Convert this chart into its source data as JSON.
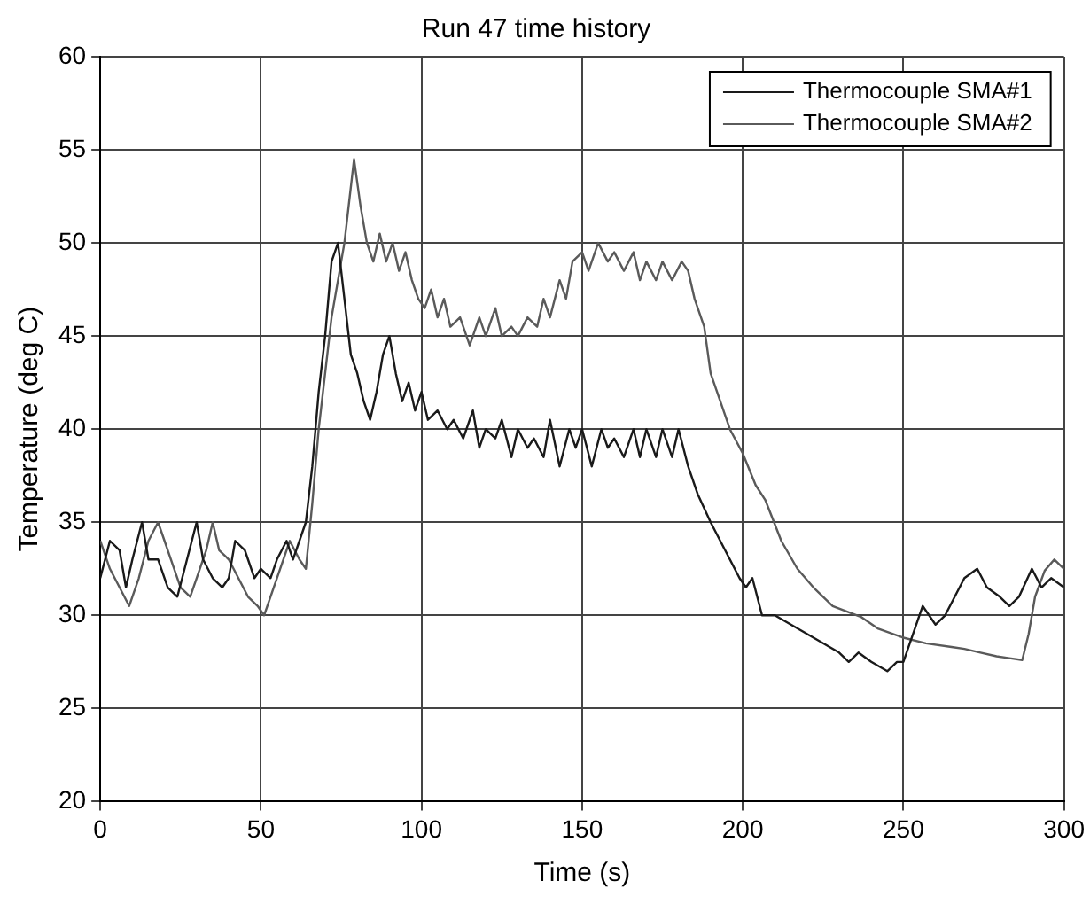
{
  "chart_data": {
    "type": "line",
    "title": "Run 47 time history",
    "xlabel": "Time (s)",
    "ylabel": "Temperature (deg C)",
    "xlim": [
      0,
      300
    ],
    "xticks": [
      0,
      50,
      100,
      150,
      200,
      250,
      300
    ],
    "ylim": [
      20,
      60
    ],
    "yticks": [
      20,
      25,
      30,
      35,
      40,
      45,
      50,
      55,
      60
    ],
    "grid": true,
    "legend": "top right",
    "marker": "none",
    "line_style": "solid",
    "series": [
      {
        "name": "Thermocouple SMA#1",
        "color": "#1a1a1a",
        "x": [
          0,
          3,
          6,
          8,
          10,
          13,
          15,
          18,
          21,
          24,
          27,
          30,
          32,
          35,
          38,
          40,
          42,
          45,
          48,
          50,
          53,
          55,
          58,
          60,
          62,
          64,
          66,
          68,
          70,
          72,
          74,
          76,
          78,
          80,
          82,
          84,
          86,
          88,
          90,
          92,
          94,
          96,
          98,
          100,
          102,
          105,
          108,
          110,
          113,
          116,
          118,
          120,
          123,
          125,
          128,
          130,
          133,
          135,
          138,
          140,
          143,
          146,
          148,
          150,
          153,
          156,
          158,
          160,
          163,
          166,
          168,
          170,
          173,
          175,
          178,
          180,
          183,
          186,
          190,
          193,
          196,
          199,
          201,
          203,
          206,
          210,
          215,
          220,
          225,
          230,
          233,
          236,
          240,
          245,
          248,
          250,
          253,
          256,
          260,
          263,
          266,
          269,
          273,
          276,
          280,
          283,
          286,
          290,
          293,
          296,
          300
        ],
        "values": [
          32,
          34,
          33.5,
          31.5,
          33,
          35,
          33,
          33,
          31.5,
          31,
          33,
          35,
          33,
          32,
          31.5,
          32,
          34,
          33.5,
          32,
          32.5,
          32,
          33,
          34,
          33,
          34,
          35,
          38,
          42,
          45,
          49,
          50,
          47,
          44,
          43,
          41.5,
          40.5,
          42,
          44,
          45,
          43,
          41.5,
          42.5,
          41,
          42,
          40.5,
          41,
          40,
          40.5,
          39.5,
          41,
          39,
          40,
          39.5,
          40.5,
          38.5,
          40,
          39,
          39.5,
          38.5,
          40.5,
          38,
          40,
          39,
          40,
          38,
          40,
          39,
          39.5,
          38.5,
          40,
          38.5,
          40,
          38.5,
          40,
          38.5,
          40,
          38,
          36.5,
          35,
          34,
          33,
          32,
          31.5,
          32,
          30,
          30,
          29.5,
          29,
          28.5,
          28,
          27.5,
          28,
          27.5,
          27,
          27.5,
          27.5,
          29,
          30.5,
          29.5,
          30,
          31,
          32,
          32.5,
          31.5,
          31,
          30.5,
          31,
          32.5,
          31.5,
          32,
          31.5
        ]
      },
      {
        "name": "Thermocouple SMA#2",
        "color": "#5a5a5a",
        "x": [
          0,
          3,
          6,
          9,
          12,
          15,
          18,
          20,
          22,
          25,
          28,
          30,
          33,
          35,
          37,
          40,
          43,
          46,
          49,
          51,
          53,
          56,
          59,
          62,
          64,
          66,
          68,
          70,
          72,
          74,
          76,
          78,
          79,
          81,
          83,
          85,
          87,
          89,
          91,
          93,
          95,
          97,
          99,
          101,
          103,
          105,
          107,
          109,
          112,
          115,
          118,
          120,
          123,
          125,
          128,
          130,
          133,
          136,
          138,
          140,
          143,
          145,
          147,
          150,
          152,
          155,
          158,
          160,
          163,
          166,
          168,
          170,
          173,
          175,
          178,
          181,
          183,
          185,
          188,
          190,
          193,
          196,
          200,
          204,
          207,
          212,
          217,
          222,
          228,
          237,
          242,
          250,
          257,
          265,
          269,
          274,
          279,
          283,
          287,
          289,
          291,
          294,
          297,
          300
        ],
        "values": [
          34,
          32.5,
          31.5,
          30.5,
          32,
          34,
          35,
          34,
          33,
          31.5,
          31,
          32,
          33.5,
          35,
          33.5,
          33,
          32,
          31,
          30.5,
          30,
          31,
          32.5,
          34,
          33,
          32.5,
          36,
          40,
          43,
          46,
          48,
          50,
          53,
          54.5,
          52,
          50,
          49,
          50.5,
          49,
          50,
          48.5,
          49.5,
          48,
          47,
          46.5,
          47.5,
          46,
          47,
          45.5,
          46,
          44.5,
          46,
          45,
          46.5,
          45,
          45.5,
          45,
          46,
          45.5,
          47,
          46,
          48,
          47,
          49,
          49.5,
          48.5,
          50,
          49,
          49.5,
          48.5,
          49.5,
          48,
          49,
          48,
          49,
          48,
          49,
          48.5,
          47,
          45.5,
          43,
          41.5,
          40,
          38.7,
          37,
          36.2,
          34,
          32.5,
          31.5,
          30.5,
          29.9,
          29.3,
          28.8,
          28.5,
          28.3,
          28.2,
          28,
          27.8,
          27.7,
          27.6,
          29,
          31,
          32.4,
          33,
          32.5
        ]
      }
    ]
  }
}
